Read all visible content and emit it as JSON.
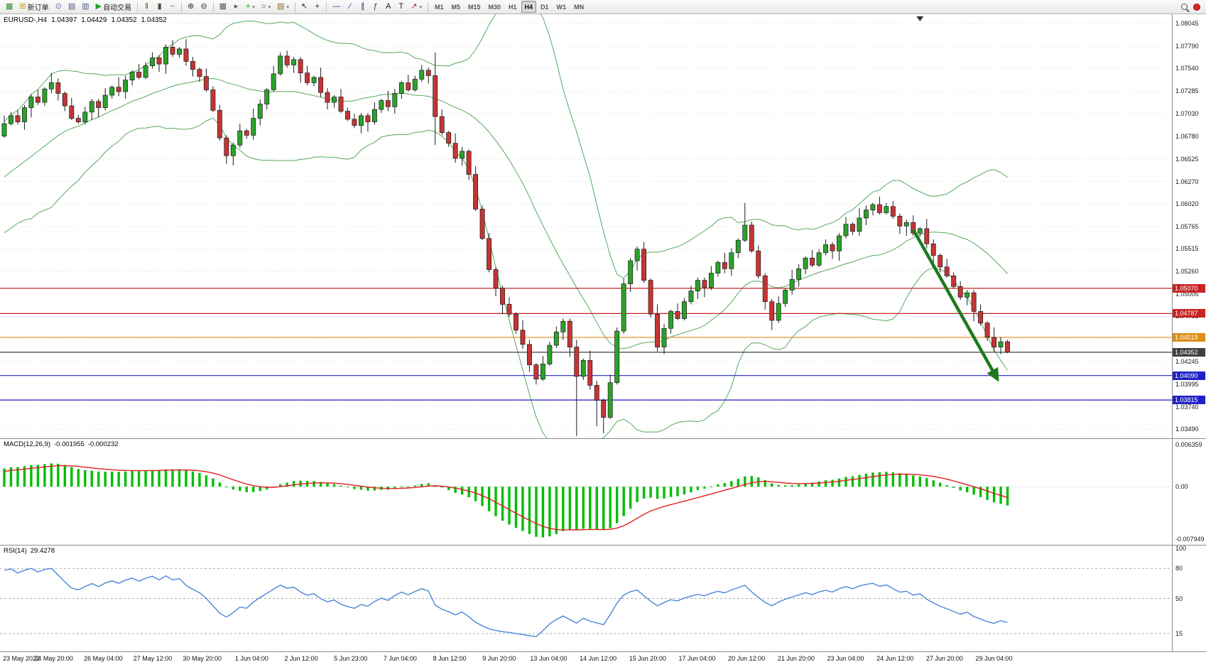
{
  "toolbar": {
    "groups": [
      {
        "name": "main",
        "items": [
          {
            "id": "new-chart",
            "glyph": "▦",
            "color": "#2f8f2f"
          },
          {
            "id": "new-order",
            "glyph": "⊞",
            "color": "#c89a1e",
            "label": "新订单"
          },
          {
            "id": "mql-community",
            "glyph": "⊙",
            "color": "#7a5ab0"
          },
          {
            "id": "charts-list",
            "glyph": "▤",
            "color": "#4a5a87"
          },
          {
            "id": "profiles",
            "glyph": "▥",
            "color": "#4a5a87"
          },
          {
            "id": "auto-trading",
            "glyph": "▶",
            "color": "#1fa11f",
            "label": "自动交易"
          }
        ]
      },
      {
        "name": "chart-type",
        "items": [
          {
            "id": "bar-chart",
            "glyph": "‖",
            "color": "#375a30"
          },
          {
            "id": "candlestick-chart",
            "glyph": "▮",
            "color": "#375a30"
          },
          {
            "id": "line-chart",
            "glyph": "~",
            "color": "#375a30"
          }
        ]
      },
      {
        "name": "zoom",
        "items": [
          {
            "id": "zoom-in",
            "glyph": "⊕",
            "color": "#333333"
          },
          {
            "id": "zoom-out",
            "glyph": "⊖",
            "color": "#333333"
          }
        ]
      },
      {
        "name": "windows",
        "items": [
          {
            "id": "auto-arrange",
            "glyph": "▦",
            "color": "#555555"
          },
          {
            "id": "scroll-to-end",
            "glyph": "▸",
            "color": "#555555"
          },
          {
            "id": "indicators",
            "glyph": "+",
            "color": "#14a014",
            "dropdown": true
          },
          {
            "id": "periods",
            "glyph": "○",
            "color": "#444444",
            "dropdown": true
          },
          {
            "id": "templates",
            "glyph": "▤",
            "color": "#8a6a2a",
            "dropdown": true
          }
        ]
      },
      {
        "name": "cursor",
        "items": [
          {
            "id": "cursor",
            "glyph": "↖",
            "color": "#222222"
          },
          {
            "id": "crosshair",
            "glyph": "+",
            "color": "#222222"
          }
        ]
      },
      {
        "name": "draw",
        "items": [
          {
            "id": "horizontal-line-tool",
            "glyph": "—",
            "color": "#203a8a"
          },
          {
            "id": "trendline-tool",
            "glyph": "∕",
            "color": "#203a8a"
          },
          {
            "id": "channel-tool",
            "glyph": "∥",
            "color": "#203a8a"
          },
          {
            "id": "fibonacci-tool",
            "glyph": "ƒ",
            "color": "#203a8a"
          },
          {
            "id": "text-tool",
            "glyph": "A",
            "color": "#222222"
          },
          {
            "id": "label-tool",
            "glyph": "T",
            "color": "#222222"
          },
          {
            "id": "arrows-tool",
            "glyph": "↗",
            "color": "#9a2a2a",
            "dropdown": true
          }
        ]
      }
    ],
    "timeframes": [
      "M1",
      "M5",
      "M15",
      "M30",
      "H1",
      "H4",
      "D1",
      "W1",
      "MN"
    ],
    "active_timeframe": "H4"
  },
  "chart": {
    "symbol_tf": "EURUSD-,H4",
    "open": "1.04397",
    "high": "1.04429",
    "low": "1.04352",
    "close": "1.04352"
  },
  "indicators": {
    "macd": {
      "name": "MACD(12,26,9)",
      "main": "-0.001955",
      "signal": "-0.000232"
    },
    "rsi": {
      "name": "RSI(14)",
      "value": "29.4278"
    }
  },
  "chart_data": {
    "type": "candlestick",
    "symbol": "EURUSD-",
    "timeframe": "H4",
    "title": "EURUSD-,H4",
    "visible_range": {
      "price_min": 1.03385,
      "price_max": 1.0815
    },
    "warmup_bars": 26,
    "closes": [
      1.0555,
      1.0548,
      1.0562,
      1.057,
      1.0558,
      1.0567,
      1.058,
      1.0574,
      1.0588,
      1.0595,
      1.0607,
      1.0598,
      1.0612,
      1.062,
      1.0609,
      1.0622,
      1.0631,
      1.064,
      1.0632,
      1.0645,
      1.0653,
      1.0648,
      1.0661,
      1.067,
      1.0664,
      1.0678,
      1.0692,
      1.0701,
      1.0694,
      1.071,
      1.0722,
      1.0716,
      1.0731,
      1.0738,
      1.0726,
      1.0712,
      1.0698,
      1.0694,
      1.0705,
      1.0717,
      1.071,
      1.0724,
      1.0733,
      1.0728,
      1.0741,
      1.075,
      1.0744,
      1.0757,
      1.0766,
      1.0759,
      1.0778,
      1.077,
      1.0776,
      1.0762,
      1.0753,
      1.0745,
      1.073,
      1.0707,
      1.0676,
      1.0656,
      1.0668,
      1.0684,
      1.0679,
      1.0698,
      1.0714,
      1.073,
      1.0748,
      1.0768,
      1.0758,
      1.0764,
      1.0749,
      1.0738,
      1.0744,
      1.0727,
      1.0716,
      1.0722,
      1.0706,
      1.0697,
      1.069,
      1.0701,
      1.0694,
      1.0708,
      1.0718,
      1.0711,
      1.0726,
      1.0738,
      1.073,
      1.0742,
      1.0752,
      1.0746,
      1.07,
      1.0682,
      1.067,
      1.0653,
      1.0661,
      1.0635,
      1.0596,
      1.0563,
      1.0528,
      1.0507,
      1.0489,
      1.0478,
      1.046,
      1.0444,
      1.0421,
      1.0405,
      1.0422,
      1.0443,
      1.0458,
      1.047,
      1.0441,
      1.0408,
      1.0426,
      1.0398,
      1.0381,
      1.0362,
      1.0401,
      1.0459,
      1.0512,
      1.0538,
      1.0551,
      1.0516,
      1.0478,
      1.0441,
      1.0462,
      1.0481,
      1.0473,
      1.0492,
      1.0504,
      1.0516,
      1.0508,
      1.0524,
      1.0536,
      1.0529,
      1.0547,
      1.0561,
      1.0578,
      1.0549,
      1.0521,
      1.0492,
      1.0471,
      1.049,
      1.0505,
      1.0517,
      1.0529,
      1.0541,
      1.0533,
      1.0547,
      1.0556,
      1.0549,
      1.0566,
      1.0579,
      1.0571,
      1.0586,
      1.0595,
      1.0601,
      1.0592,
      1.0599,
      1.0588,
      1.0577,
      1.0581,
      1.0569,
      1.0574,
      1.0557,
      1.0544,
      1.0531,
      1.0521,
      1.0509,
      1.0497,
      1.0502,
      1.0481,
      1.0468,
      1.0452,
      1.0441,
      1.0447,
      1.04352
    ],
    "wick_pattern": [
      3,
      8,
      2,
      11,
      5,
      2,
      9,
      4,
      6,
      3
    ],
    "wick_overrides": {
      "90": [
        1.0772,
        1.0668
      ],
      "111": [
        null,
        1.0341
      ],
      "114": [
        null,
        1.0352
      ],
      "115": [
        null,
        1.0344
      ],
      "136": [
        1.0603,
        null
      ],
      "175": [
        1.0449,
        1.0434
      ]
    },
    "bollinger": {
      "period": 20,
      "deviation": 2
    },
    "macd": {
      "fast": 12,
      "slow": 26,
      "signal": 9,
      "scale_max": 0.006359,
      "scale_min": -0.007949,
      "axis_labels": [
        "0.006359",
        "0.00",
        "-0.007949"
      ]
    },
    "rsi": {
      "period": 14,
      "levels": [
        80,
        50,
        15
      ],
      "axis_labels": [
        "100",
        "80",
        "50",
        "15"
      ]
    },
    "hlines": [
      {
        "price": 1.0507,
        "label": "1.05070",
        "color": "#c92222"
      },
      {
        "price": 1.04787,
        "label": "1.04787",
        "color": "#c92222"
      },
      {
        "price": 1.04519,
        "label": "1.04519",
        "color": "#e08d1a"
      },
      {
        "price": 1.04352,
        "label": "1.04352",
        "color": "#3f3f3f"
      },
      {
        "price": 1.0409,
        "label": "1.04090",
        "color": "#1f22c4"
      },
      {
        "price": 1.03815,
        "label": "1.03815",
        "color": "#1f22c4"
      }
    ],
    "arrow": {
      "from_bar": 135,
      "from_price": 1.0573,
      "to_bar": 147.5,
      "to_price": 1.0405,
      "color": "#1d7a1d"
    },
    "price_ticks": [
      "1.08045",
      "1.07790",
      "1.07540",
      "1.07285",
      "1.07030",
      "1.06780",
      "1.06525",
      "1.06270",
      "1.06020",
      "1.05765",
      "1.05515",
      "1.05260",
      "1.05005",
      "1.04755",
      "1.04500",
      "1.04245",
      "1.03995",
      "1.03740",
      "1.03490"
    ],
    "time_labels": [
      "23 May 2022",
      "24 May 20:00",
      "26 May 04:00",
      "27 May 12:00",
      "30 May 20:00",
      "1 Jun 04:00",
      "2 Jun 12:00",
      "5 Jun 23:00",
      "7 Jun 04:00",
      "8 Jun 12:00",
      "9 Jun 20:00",
      "13 Jun 04:00",
      "14 Jun 12:00",
      "15 Jun 20:00",
      "17 Jun 04:00",
      "20 Jun 12:00",
      "21 Jun 20:00",
      "23 Jun 04:00",
      "24 Jun 12:00",
      "27 Jun 20:00",
      "29 Jun 04:00"
    ],
    "colors": {
      "up": "#2aa22a",
      "down": "#c63434",
      "outline": "#1c1c1c",
      "wick": "#1c1c1c",
      "bollinger": "#58a85c",
      "grid": "#d9d9d9",
      "macd_hist": "#00be00",
      "macd_signal": "#e02020",
      "rsi_line": "#4a86d8",
      "level_line": "#adadad"
    }
  }
}
